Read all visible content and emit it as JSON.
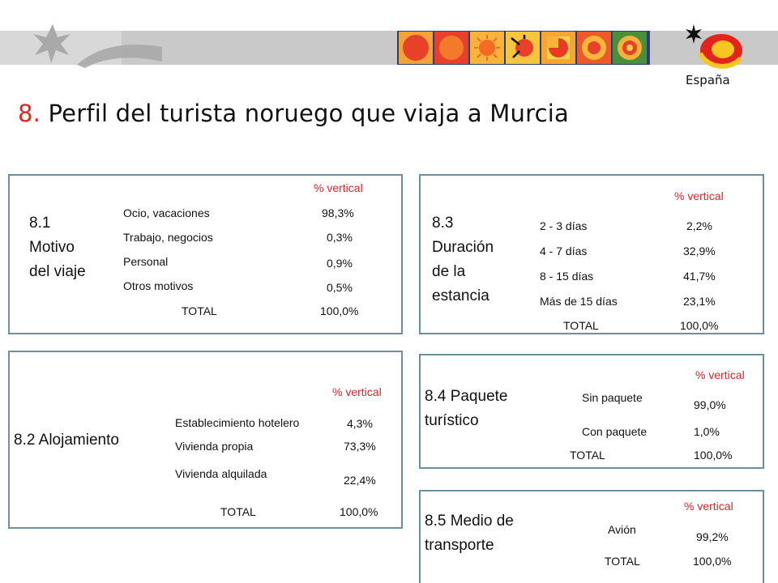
{
  "slide": {
    "title_number": "8.",
    "title_text": "Perfil del turista noruego que viaja a Murcia",
    "logo_text": "España",
    "accent_color": "#e0271f",
    "border_color": "#6f8f9c"
  },
  "sections": {
    "motivo": {
      "title_line1": "8.1",
      "title_line2": "Motivo",
      "title_line3": "del viaje",
      "header": "% vertical",
      "rows": [
        {
          "label": "Ocio, vacaciones",
          "value": "98,3%"
        },
        {
          "label": "Trabajo, negocios",
          "value": "0,3%"
        },
        {
          "label": "Personal",
          "value": "0,9%"
        },
        {
          "label": "Otros motivos",
          "value": "0,5%"
        }
      ],
      "total_label": "TOTAL",
      "total_value": "100,0%"
    },
    "duracion": {
      "title_line1": "8.3",
      "title_line2": "Duración",
      "title_line3": "de la",
      "title_line4": "estancia",
      "header": "% vertical",
      "rows": [
        {
          "label": "2 - 3 días",
          "value": "2,2%"
        },
        {
          "label": "4 - 7 días",
          "value": "32,9%"
        },
        {
          "label": "8 - 15 días",
          "value": "41,7%"
        },
        {
          "label": "Más de 15 días",
          "value": "23,1%"
        }
      ],
      "total_label": "TOTAL",
      "total_value": "100,0%"
    },
    "alojamiento": {
      "title": "8.2 Alojamiento",
      "header": "% vertical",
      "rows": [
        {
          "label": "Establecimiento hotelero",
          "value": "4,3%"
        },
        {
          "label": "Vivienda propia",
          "value": "73,3%"
        },
        {
          "label": "Vivienda alquilada",
          "value": "22,4%"
        }
      ],
      "total_label": "TOTAL",
      "total_value": "100,0%"
    },
    "paquete": {
      "title_line1": "8.4 Paquete",
      "title_line2": "turístico",
      "header": "% vertical",
      "rows": [
        {
          "label": "Sin paquete",
          "value": "99,0%"
        },
        {
          "label": "Con paquete",
          "value": "1,0%"
        }
      ],
      "total_label": "TOTAL",
      "total_value": "100,0%"
    },
    "transporte": {
      "title_line1": "8.5 Medio de",
      "title_line2": "transporte",
      "header": "% vertical",
      "rows": [
        {
          "label": "Avión",
          "value": "99,2%"
        }
      ],
      "total_label": "TOTAL",
      "total_value": "100,0%"
    }
  }
}
